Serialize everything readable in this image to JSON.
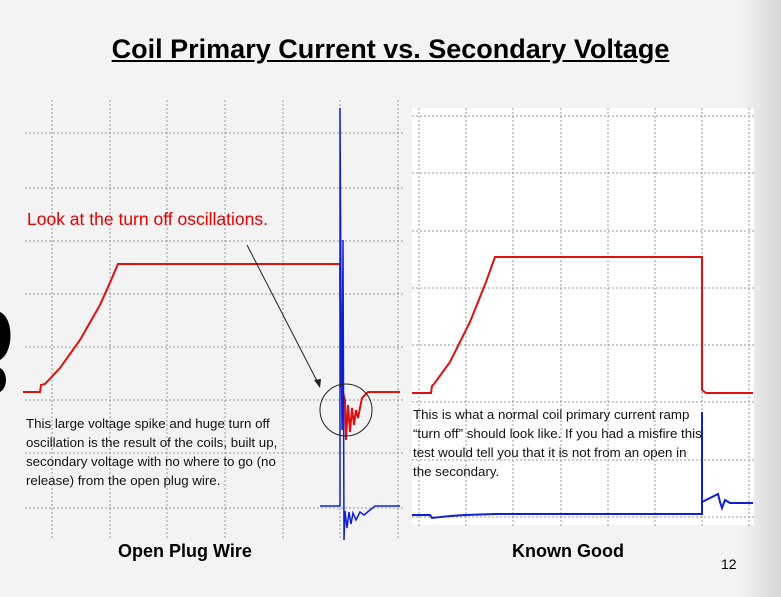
{
  "slide": {
    "title": "Coil Primary Current vs. Secondary Voltage",
    "page_number": "12"
  },
  "left_panel": {
    "annotation": "Look at the turn off oscillations.",
    "description": "This large voltage spike and huge turn off oscillation is the result of the coils, built up, secondary voltage with no where to go (no release) from the open plug wire.",
    "caption": "Open Plug Wire"
  },
  "right_panel": {
    "description": "This is what a normal coil primary current ramp “turn off” should look like. If you had a misfire this test would tell you that it is not from an open in the secondary.",
    "caption": "Known Good"
  },
  "colors": {
    "primary_current": "#e01010",
    "secondary_voltage": "#1020d0",
    "annotation": "#e00000"
  }
}
